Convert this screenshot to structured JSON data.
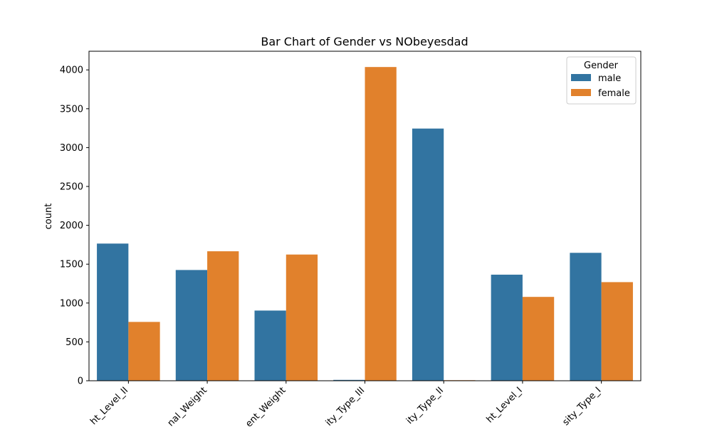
{
  "chart_data": {
    "type": "bar",
    "title": "Bar Chart of Gender vs NObeyesdad",
    "xlabel": "",
    "ylabel": "count",
    "categories": [
      "Overweight_Level_II",
      "Normal_Weight",
      "Insufficient_Weight",
      "Obesity_Type_III",
      "Obesity_Type_II",
      "Overweight_Level_I",
      "Obesity_Type_I"
    ],
    "category_labels_visible": [
      "ht_Level_II",
      "nal_Weight",
      "ent_Weight",
      "ity_Type_III",
      "ity_Type_II",
      "ht_Level_I",
      "sity_Type_I"
    ],
    "series": [
      {
        "name": "male",
        "color": "#3274a1",
        "values": [
          1765,
          1425,
          903,
          11,
          3245,
          1365,
          1646
        ]
      },
      {
        "name": "female",
        "color": "#e1812c",
        "values": [
          757,
          1666,
          1624,
          4037,
          7,
          1079,
          1269
        ]
      }
    ],
    "ylim": [
      0,
      4240
    ],
    "yticks": [
      0,
      500,
      1000,
      1500,
      2000,
      2500,
      3000,
      3500,
      4000
    ],
    "legend": {
      "title": "Gender",
      "placement": "top-right"
    },
    "grid": false
  }
}
